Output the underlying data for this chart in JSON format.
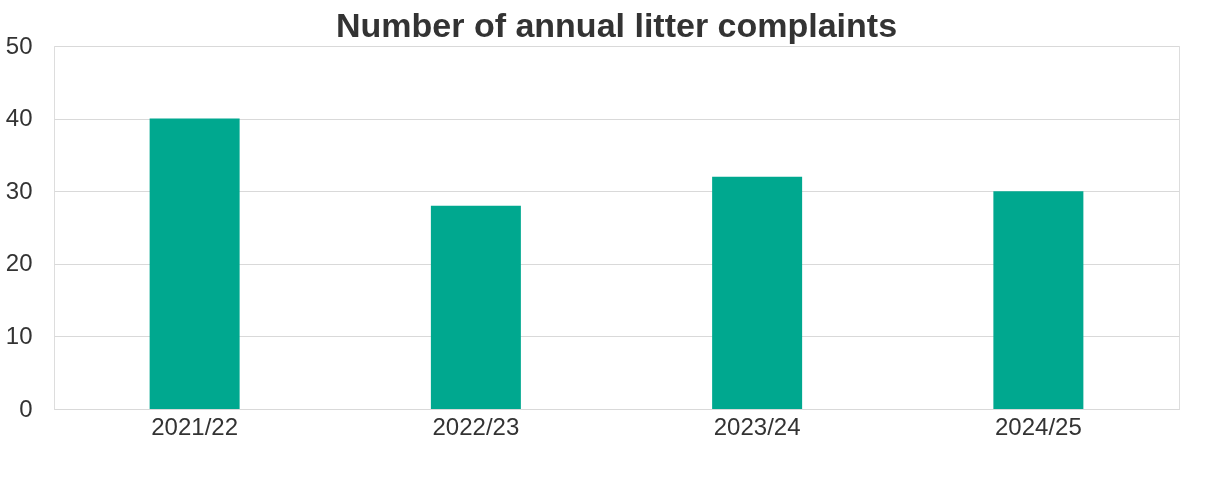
{
  "chart_data": {
    "type": "bar",
    "title": "Number of annual litter complaints",
    "categories": [
      "2021/22",
      "2022/23",
      "2023/24",
      "2024/25"
    ],
    "series": [
      {
        "color": "#00a88f",
        "values": [
          40,
          28,
          32,
          30
        ]
      }
    ],
    "ylim": [
      0,
      50
    ],
    "yticks": [
      0,
      10,
      20,
      30,
      40,
      50
    ],
    "grid": "y",
    "legend": false
  }
}
